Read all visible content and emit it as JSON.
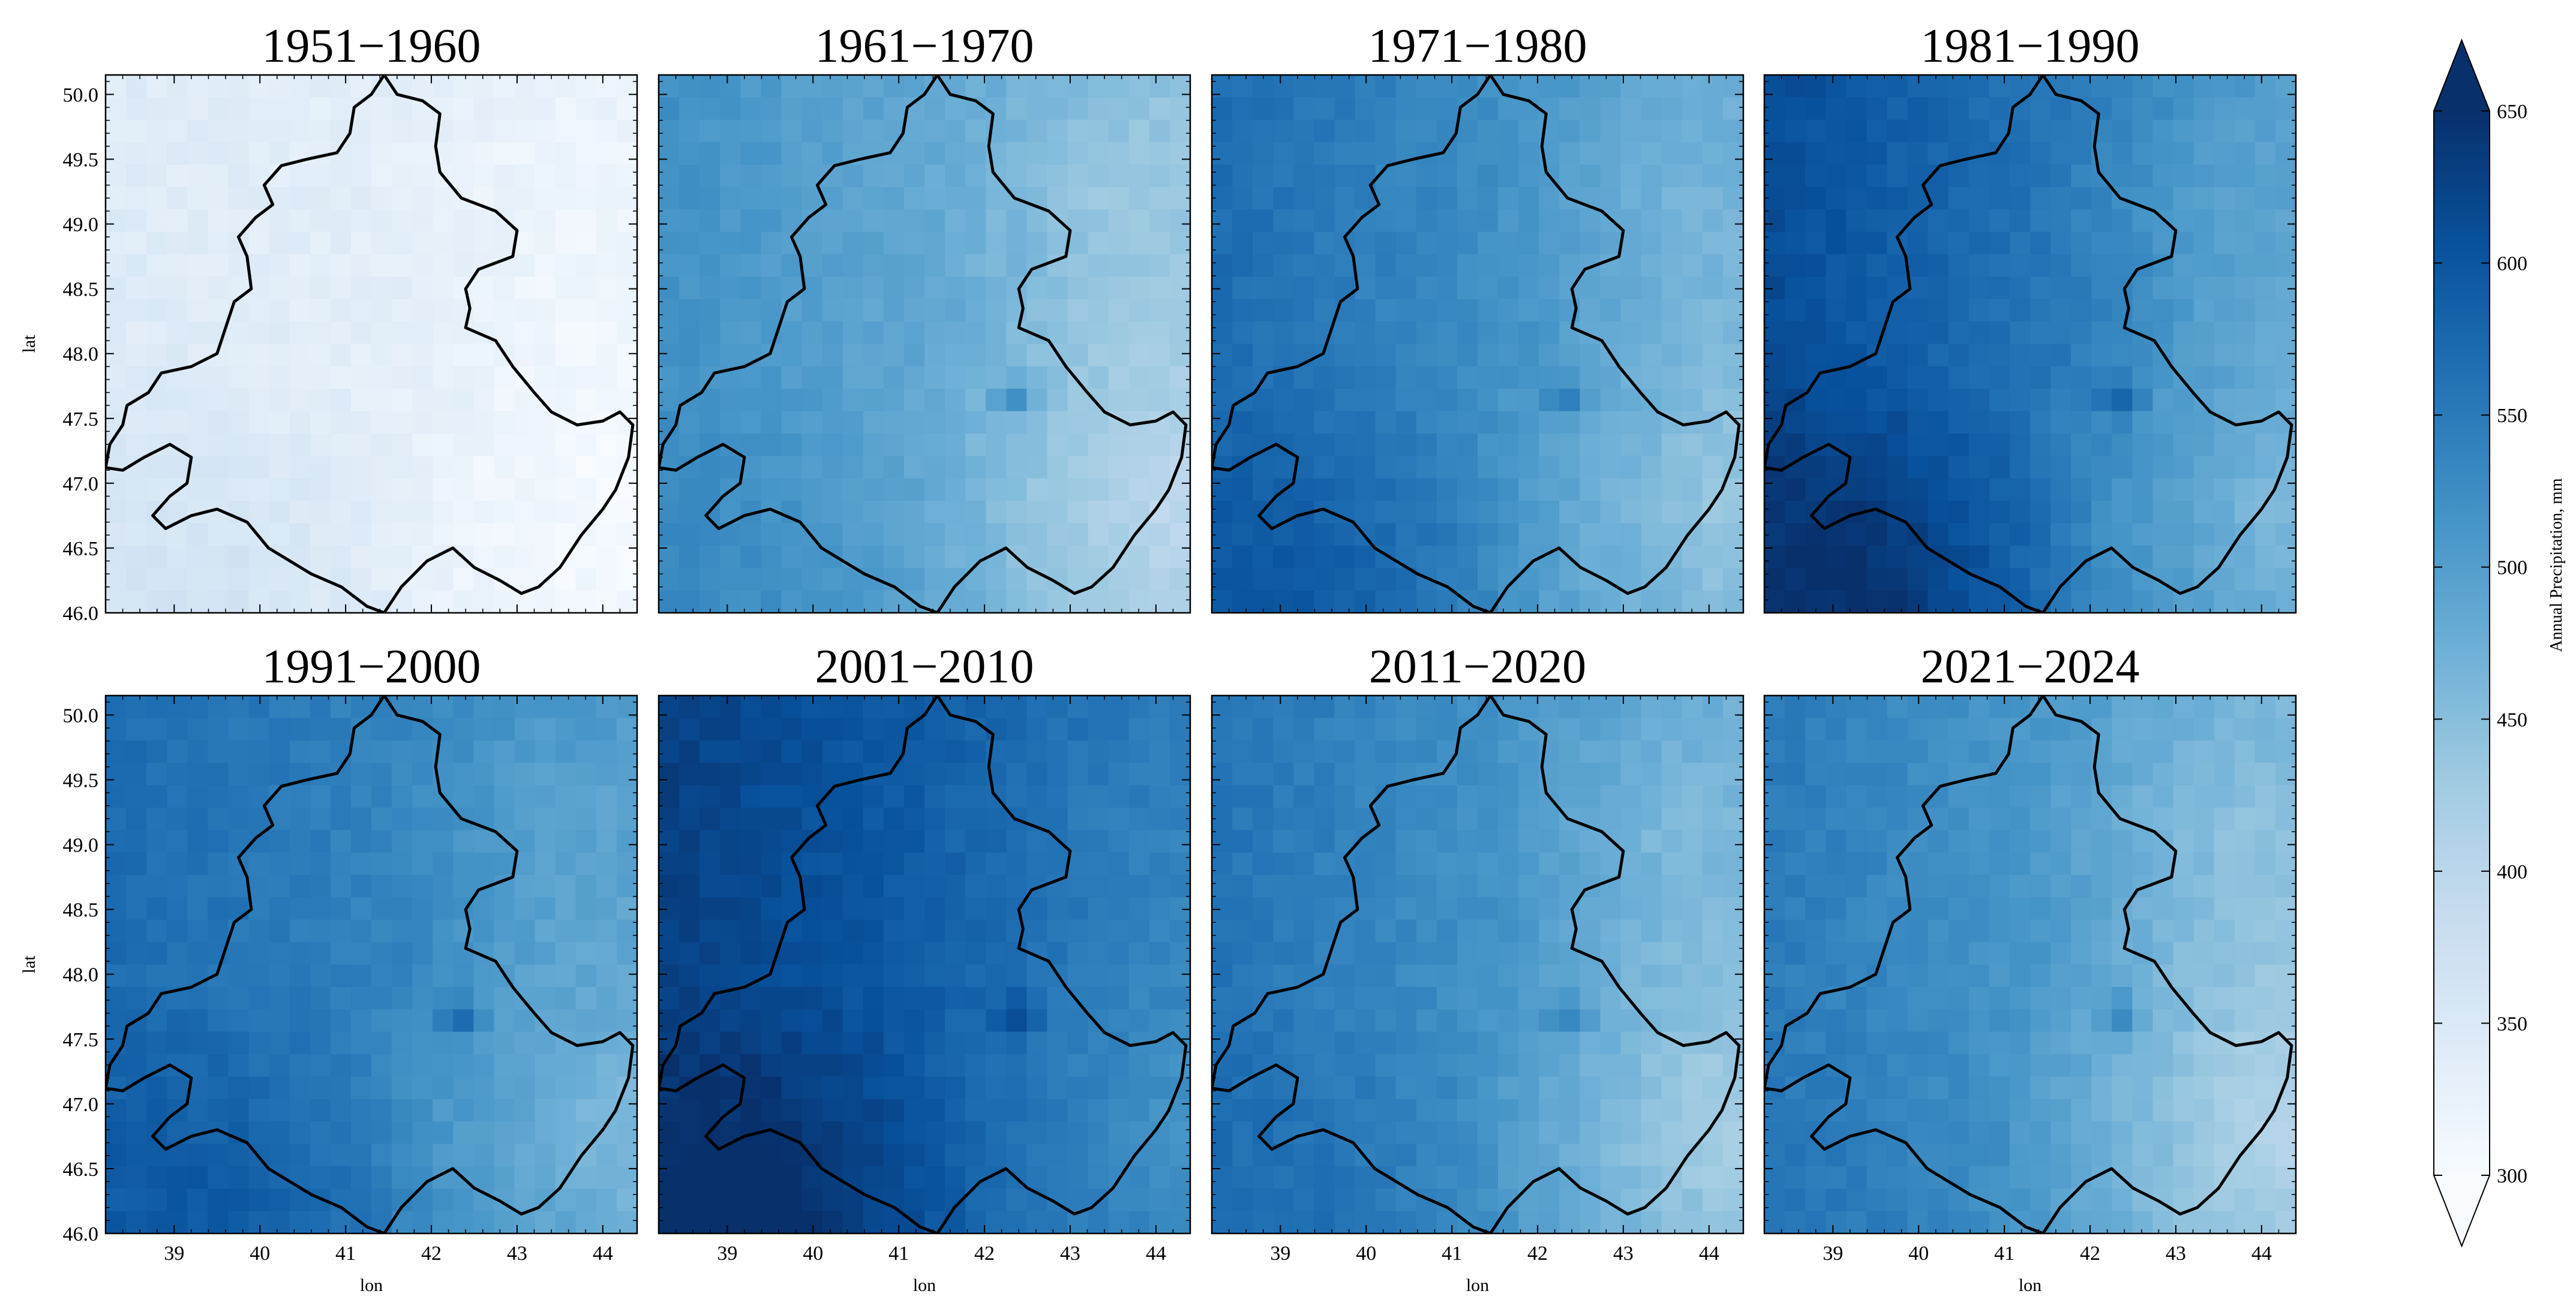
{
  "chart_data": {
    "type": "heatmap",
    "description_units": "Annual Precipitation, mm",
    "colormap": "Blues",
    "colorbar": {
      "label": "Annual Precipitation, mm",
      "range": [
        300,
        650
      ],
      "ticks": [
        300,
        350,
        400,
        450,
        500,
        550,
        600,
        650
      ],
      "extend": "both",
      "location": "right"
    },
    "x_axis": {
      "label": "lon",
      "range": [
        38.2,
        44.4
      ],
      "ticks": [
        39,
        40,
        41,
        42,
        43,
        44
      ]
    },
    "y_axis": {
      "label": "lat",
      "range": [
        46.0,
        50.15
      ],
      "ticks": [
        46.0,
        46.5,
        47.0,
        47.5,
        48.0,
        48.5,
        49.0,
        49.5,
        50.0
      ]
    },
    "layout": {
      "rows": 2,
      "cols": 4
    },
    "panels": [
      {
        "title": "1951−1960",
        "mean_mm": 335,
        "west_gradient_mm": 10,
        "southwest_mm": 25,
        "east_mm": -25,
        "spot_mm": 20
      },
      {
        "title": "1961−1970",
        "mean_mm": 485,
        "west_gradient_mm": 35,
        "southwest_mm": 20,
        "east_mm": -55,
        "spot_mm": 70
      },
      {
        "title": "1971−1980",
        "mean_mm": 525,
        "west_gradient_mm": 45,
        "southwest_mm": 45,
        "east_mm": -50,
        "spot_mm": 60
      },
      {
        "title": "1981−1990",
        "mean_mm": 560,
        "west_gradient_mm": 55,
        "southwest_mm": 60,
        "east_mm": -50,
        "spot_mm": 60
      },
      {
        "title": "1991−2000",
        "mean_mm": 540,
        "west_gradient_mm": 30,
        "southwest_mm": 40,
        "east_mm": -55,
        "spot_mm": 60
      },
      {
        "title": "2001−2010",
        "mean_mm": 590,
        "west_gradient_mm": 40,
        "southwest_mm": 50,
        "east_mm": -35,
        "spot_mm": 60
      },
      {
        "title": "2011−2020",
        "mean_mm": 520,
        "west_gradient_mm": 40,
        "southwest_mm": 20,
        "east_mm": -65,
        "spot_mm": 60
      },
      {
        "title": "2021−2024",
        "mean_mm": 510,
        "west_gradient_mm": 40,
        "southwest_mm": 15,
        "east_mm": -70,
        "spot_mm": 70
      }
    ],
    "region_boundary_lonlat": [
      [
        41.45,
        50.15
      ],
      [
        41.6,
        50.0
      ],
      [
        41.9,
        49.95
      ],
      [
        42.1,
        49.85
      ],
      [
        42.05,
        49.6
      ],
      [
        42.1,
        49.4
      ],
      [
        42.35,
        49.2
      ],
      [
        42.75,
        49.1
      ],
      [
        43.0,
        48.95
      ],
      [
        42.95,
        48.75
      ],
      [
        42.55,
        48.65
      ],
      [
        42.4,
        48.5
      ],
      [
        42.45,
        48.35
      ],
      [
        42.4,
        48.2
      ],
      [
        42.75,
        48.1
      ],
      [
        42.95,
        47.9
      ],
      [
        43.2,
        47.7
      ],
      [
        43.4,
        47.55
      ],
      [
        43.7,
        47.45
      ],
      [
        44.0,
        47.48
      ],
      [
        44.2,
        47.55
      ],
      [
        44.35,
        47.45
      ],
      [
        44.3,
        47.2
      ],
      [
        44.15,
        46.95
      ],
      [
        44.0,
        46.8
      ],
      [
        43.75,
        46.6
      ],
      [
        43.5,
        46.35
      ],
      [
        43.25,
        46.2
      ],
      [
        43.05,
        46.15
      ],
      [
        42.8,
        46.25
      ],
      [
        42.5,
        46.35
      ],
      [
        42.25,
        46.5
      ],
      [
        41.95,
        46.4
      ],
      [
        41.65,
        46.2
      ],
      [
        41.45,
        46.0
      ],
      [
        41.25,
        46.05
      ],
      [
        40.95,
        46.2
      ],
      [
        40.6,
        46.3
      ],
      [
        40.35,
        46.4
      ],
      [
        40.1,
        46.5
      ],
      [
        39.85,
        46.7
      ],
      [
        39.5,
        46.8
      ],
      [
        39.2,
        46.75
      ],
      [
        38.9,
        46.65
      ],
      [
        38.75,
        46.75
      ],
      [
        38.95,
        46.9
      ],
      [
        39.15,
        47.0
      ],
      [
        39.2,
        47.2
      ],
      [
        38.95,
        47.3
      ],
      [
        38.65,
        47.2
      ],
      [
        38.4,
        47.1
      ],
      [
        38.2,
        47.12
      ],
      [
        38.25,
        47.3
      ],
      [
        38.4,
        47.45
      ],
      [
        38.45,
        47.6
      ],
      [
        38.7,
        47.7
      ],
      [
        38.85,
        47.85
      ],
      [
        39.2,
        47.9
      ],
      [
        39.5,
        48.0
      ],
      [
        39.6,
        48.2
      ],
      [
        39.7,
        48.4
      ],
      [
        39.9,
        48.5
      ],
      [
        39.85,
        48.75
      ],
      [
        39.75,
        48.9
      ],
      [
        39.95,
        49.05
      ],
      [
        40.15,
        49.15
      ],
      [
        40.05,
        49.3
      ],
      [
        40.25,
        49.45
      ],
      [
        40.55,
        49.5
      ],
      [
        40.9,
        49.55
      ],
      [
        41.05,
        49.7
      ],
      [
        41.1,
        49.9
      ],
      [
        41.3,
        50.0
      ],
      [
        41.45,
        50.15
      ]
    ]
  }
}
